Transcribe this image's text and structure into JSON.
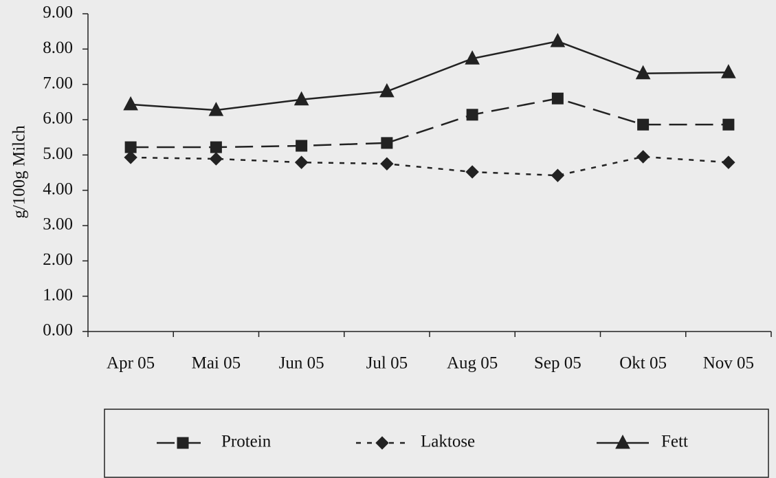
{
  "chart_data": {
    "type": "line",
    "y_label": "g/100g Milch",
    "categories": [
      "Apr 05",
      "Mai 05",
      "Jun 05",
      "Jul 05",
      "Aug 05",
      "Sep 05",
      "Okt 05",
      "Nov 05"
    ],
    "series": [
      {
        "name": "Protein",
        "color": "#222222",
        "marker": "square",
        "line_style": "dashed",
        "values": [
          5.22,
          5.22,
          5.26,
          5.34,
          6.14,
          6.6,
          5.86,
          5.86
        ]
      },
      {
        "name": "Laktose",
        "color": "#222222",
        "marker": "diamond",
        "line_style": "dotted",
        "values": [
          4.93,
          4.89,
          4.79,
          4.75,
          4.52,
          4.42,
          4.95,
          4.79
        ]
      },
      {
        "name": "Fett",
        "color": "#222222",
        "marker": "triangle",
        "line_style": "solid",
        "values": [
          6.43,
          6.27,
          6.57,
          6.8,
          7.73,
          8.22,
          7.31,
          7.34
        ]
      }
    ],
    "ylim": [
      0,
      9
    ],
    "yticks": [
      {
        "value": 0,
        "label": "0.00"
      },
      {
        "value": 1,
        "label": "1.00"
      },
      {
        "value": 2,
        "label": "2.00"
      },
      {
        "value": 3,
        "label": "3.00"
      },
      {
        "value": 4,
        "label": "4.00"
      },
      {
        "value": 5,
        "label": "5.00"
      },
      {
        "value": 6,
        "label": "6.00"
      },
      {
        "value": 7,
        "label": "7.00"
      },
      {
        "value": 8,
        "label": "8.00"
      },
      {
        "value": 9,
        "label": "9.00"
      }
    ],
    "grid": false,
    "legend": "bottom"
  }
}
